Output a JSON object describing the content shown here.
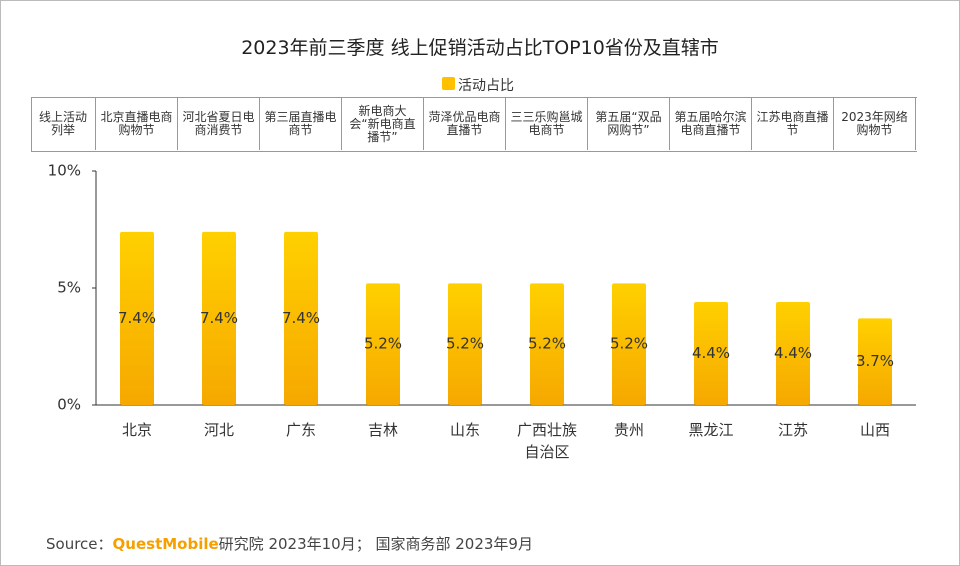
{
  "chart_data": {
    "type": "bar",
    "title": "2023年前三季度 线上促销活动占比TOP10省份及直辖市",
    "legend": "活动占比",
    "categories": [
      "北京",
      "河北",
      "广东",
      "吉林",
      "山东",
      "广西壮族自治区",
      "贵州",
      "黑龙江",
      "江苏",
      "山西"
    ],
    "values": [
      7.4,
      7.4,
      7.4,
      5.2,
      5.2,
      5.2,
      5.2,
      4.4,
      4.4,
      3.7
    ],
    "value_labels": [
      "7.4%",
      "7.4%",
      "7.4%",
      "5.2%",
      "5.2%",
      "5.2%",
      "5.2%",
      "4.4%",
      "4.4%",
      "3.7%"
    ],
    "color": "#ffc000",
    "ylim": [
      0,
      10
    ],
    "yticks": [
      {
        "value": 0,
        "label": "0%"
      },
      {
        "value": 5,
        "label": "5%"
      },
      {
        "value": 10,
        "label": "10%"
      }
    ],
    "grid": false
  },
  "table": {
    "header": "线上活动列举",
    "cells": [
      "北京直播电商购物节",
      "河北省夏日电商消费节",
      "第三届直播电商节",
      "新电商大会“新电商直播节”",
      "菏泽优品电商直播节",
      "三三乐购邕城电商节",
      "第五届“双品网购节”",
      "第五届哈尔滨电商直播节",
      "江苏电商直播节",
      "2023年网络购物节"
    ]
  },
  "source": {
    "label": "Source：",
    "brand": "QuestMobile",
    "text": "研究院 2023年10月； 国家商务部 2023年9月"
  }
}
